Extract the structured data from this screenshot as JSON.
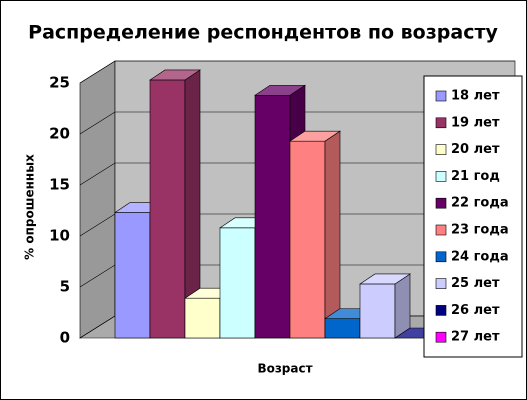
{
  "chart_data": {
    "type": "bar3d",
    "title": "Распределение респондентов по возрасту",
    "y_label": "% опрошенных",
    "x_label": "Возраст",
    "ylim": [
      0,
      25
    ],
    "yticks": [
      0,
      5,
      10,
      15,
      20,
      25
    ],
    "grid": true,
    "series": [
      {
        "name": "18 лет",
        "color": "#9999ff",
        "values": [
          12.3
        ]
      },
      {
        "name": "19 лет",
        "color": "#993366",
        "values": [
          25.3
        ]
      },
      {
        "name": "20 лет",
        "color": "#ffffcc",
        "values": [
          3.9
        ]
      },
      {
        "name": "21 год",
        "color": "#ccffff",
        "values": [
          10.8
        ]
      },
      {
        "name": "22 года",
        "color": "#660066",
        "values": [
          23.8
        ]
      },
      {
        "name": "23 года",
        "color": "#ff8080",
        "values": [
          19.3
        ]
      },
      {
        "name": "24 года",
        "color": "#0066cc",
        "values": [
          1.9
        ]
      },
      {
        "name": "25 лет",
        "color": "#ccccff",
        "values": [
          5.3
        ]
      },
      {
        "name": "26 лет",
        "color": "#000080",
        "values": [
          0
        ]
      },
      {
        "name": "27 лет",
        "color": "#ff00ff",
        "values": [
          0
        ]
      }
    ]
  }
}
